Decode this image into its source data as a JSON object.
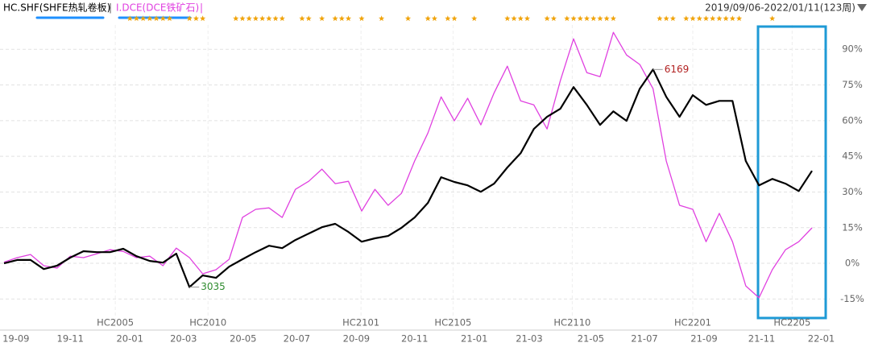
{
  "chart_data": {
    "type": "line",
    "legend": [
      "HC.SHF(SHFE热轧卷板)",
      "I.DCE(DCE铁矿石)"
    ],
    "separator": "|",
    "date_range": "2019/09/06-2022/01/11(123周)",
    "x": [
      0,
      2,
      4,
      6,
      8,
      10,
      12,
      14,
      16,
      18,
      20,
      22,
      24,
      26,
      28,
      30,
      32,
      34,
      36,
      38,
      40,
      42,
      44,
      46,
      48,
      50,
      52,
      54,
      56,
      58,
      60,
      62,
      64,
      66,
      68,
      70,
      72,
      74,
      76,
      78,
      80,
      82,
      84,
      86,
      88,
      90,
      92,
      94,
      96,
      98,
      100,
      102,
      104,
      106,
      108,
      110,
      112,
      114,
      116,
      118,
      120,
      122
    ],
    "series": [
      {
        "name": "HC.SHF(SHFE热轧卷板)",
        "color": "#000000",
        "values": [
          0,
          1.4,
          1.4,
          -2.4,
          -1,
          2.4,
          5.1,
          4.7,
          4.7,
          6.1,
          3,
          1,
          0.3,
          4.1,
          -10,
          -5.1,
          -6.1,
          -1.4,
          1.7,
          4.7,
          7.4,
          6.4,
          9.8,
          12.5,
          15.2,
          16.6,
          13.2,
          9.1,
          10.5,
          11.5,
          14.9,
          19.3,
          25.4,
          36.2,
          34.2,
          32.8,
          30.1,
          33.5,
          40.3,
          46.3,
          56.5,
          61.6,
          65,
          74.1,
          66.6,
          58.2,
          63.9,
          59.9,
          73.4,
          81.5,
          70,
          61.6,
          70.7,
          66.6,
          68.3,
          68.3,
          43,
          32.8,
          35.5,
          33.5,
          30.4,
          38.9
        ]
      },
      {
        "name": "I.DCE(DCE铁矿石)",
        "color": "#e040e0",
        "values": [
          0.5,
          2.4,
          3.7,
          -1,
          -2,
          3,
          2.4,
          4,
          5.7,
          5,
          2.4,
          3,
          -1,
          6.4,
          2.4,
          -4.4,
          -2.7,
          1.7,
          19.3,
          22.7,
          23.3,
          19.3,
          31.1,
          34.5,
          39.6,
          33.5,
          34.5,
          22,
          31.1,
          24.4,
          29.4,
          43,
          54.8,
          70,
          59.9,
          69.4,
          58.2,
          71.7,
          82.9,
          68.3,
          66.6,
          56.5,
          76.8,
          94.4,
          80.2,
          78.5,
          97.1,
          87.6,
          83.6,
          73.4,
          43,
          24.4,
          22.7,
          9.1,
          21,
          9.1,
          -9.5,
          -14.5,
          -2.7,
          5.7,
          9.1,
          14.9
        ]
      }
    ],
    "xlim": [
      0,
      122
    ],
    "xticks": [
      {
        "value": 1.8,
        "label": "19-09"
      },
      {
        "value": 10,
        "label": "19-11"
      },
      {
        "value": 19,
        "label": "20-01"
      },
      {
        "value": 27.1,
        "label": "20-03"
      },
      {
        "value": 36.1,
        "label": "20-05"
      },
      {
        "value": 44.2,
        "label": "20-07"
      },
      {
        "value": 53.2,
        "label": "20-09"
      },
      {
        "value": 62,
        "label": "20-11"
      },
      {
        "value": 71,
        "label": "21-01"
      },
      {
        "value": 79.3,
        "label": "21-03"
      },
      {
        "value": 88.6,
        "label": "21-05"
      },
      {
        "value": 96.7,
        "label": "21-07"
      },
      {
        "value": 105.7,
        "label": "21-09"
      },
      {
        "value": 114.4,
        "label": "21-11"
      },
      {
        "value": 123.4,
        "label": "22-01"
      }
    ],
    "ylim": [
      -23,
      107
    ],
    "yticks": [
      {
        "value": 90,
        "label": "90%"
      },
      {
        "value": 75,
        "label": "75%"
      },
      {
        "value": 60,
        "label": "60%"
      },
      {
        "value": 45,
        "label": "45%"
      },
      {
        "value": 30,
        "label": "30%"
      },
      {
        "value": 15,
        "label": "15%"
      },
      {
        "value": 0,
        "label": "0%"
      },
      {
        "value": -15,
        "label": "-15%"
      }
    ],
    "grid": true,
    "contracts": [
      {
        "x": 16.8,
        "label": "HC2005"
      },
      {
        "x": 30.8,
        "label": "HC2010"
      },
      {
        "x": 53.9,
        "label": "HC2101"
      },
      {
        "x": 67.8,
        "label": "HC2105"
      },
      {
        "x": 85.8,
        "label": "HC2110"
      },
      {
        "x": 104,
        "label": "HC2201"
      },
      {
        "x": 119,
        "label": "HC2205"
      }
    ],
    "stars": [
      19,
      20,
      21,
      22,
      23,
      24,
      25,
      28,
      29,
      30,
      35,
      36,
      37,
      38,
      39,
      40,
      41,
      42,
      45,
      46,
      48,
      50,
      51,
      52,
      54,
      57,
      61,
      64,
      65,
      67,
      68,
      71,
      76,
      77,
      78,
      79,
      82,
      83,
      85,
      86,
      87,
      88,
      89,
      90,
      91,
      92,
      99,
      100,
      101,
      103,
      104,
      105,
      106,
      107,
      108,
      109,
      110,
      111,
      116
    ],
    "star_color": "#f0a30a",
    "annotations": [
      {
        "x": 28,
        "label": "3035",
        "color": "#2e8b2e"
      },
      {
        "x": 98,
        "label": "6169",
        "color": "#b22222"
      }
    ]
  }
}
